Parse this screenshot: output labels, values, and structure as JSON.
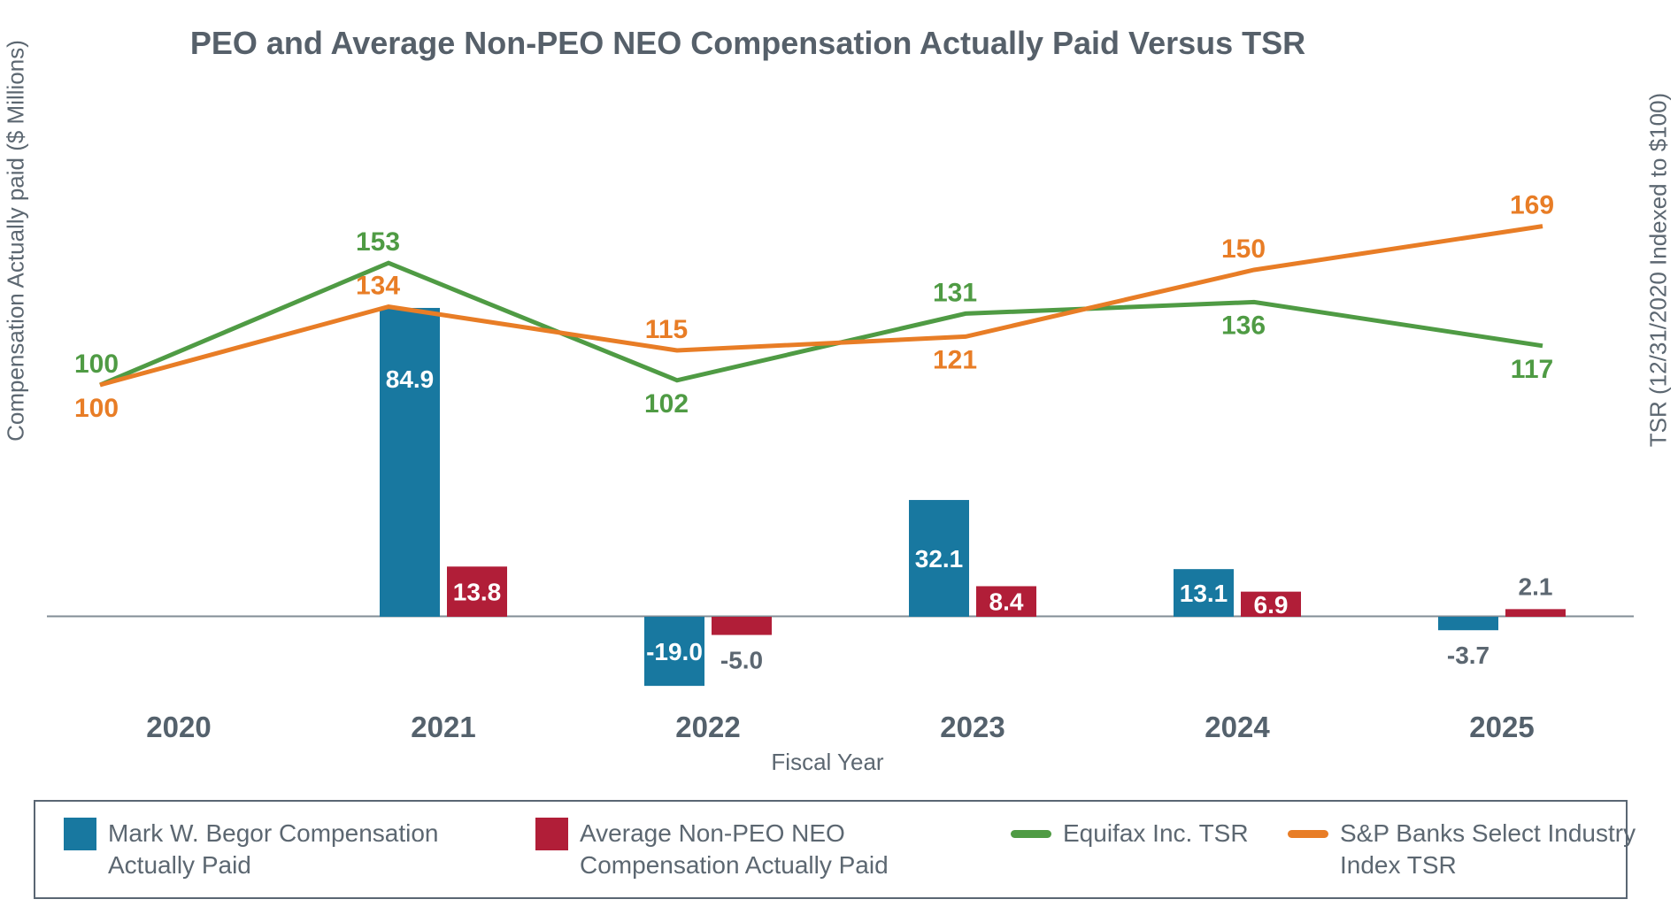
{
  "chart_data": {
    "type": "combo-bar-line",
    "title": "PEO and Average Non-PEO NEO Compensation Actually Paid Versus TSR",
    "categories": [
      "2020",
      "2021",
      "2022",
      "2023",
      "2024",
      "2025"
    ],
    "bar_series": [
      {
        "name": "Mark W. Begor Compensation Actually Paid",
        "color": "#1878A0",
        "values": [
          null,
          84.9,
          -19.0,
          32.1,
          13.1,
          -3.7
        ]
      },
      {
        "name": "Average Non-PEO NEO Compensation Actually Paid",
        "color": "#B11E38",
        "values": [
          null,
          13.8,
          -5.0,
          8.4,
          6.9,
          2.1
        ]
      }
    ],
    "line_series": [
      {
        "name": "Equifax Inc. TSR",
        "color": "#4F9B44",
        "values": [
          100,
          153,
          102,
          131,
          136,
          117
        ],
        "label_side": [
          "above",
          "above",
          "below",
          "above",
          "below",
          "below"
        ]
      },
      {
        "name": "S&P Banks Select Industry Index TSR",
        "color": "#E87D26",
        "values": [
          100,
          134,
          115,
          121,
          150,
          169
        ],
        "label_side": [
          "below",
          "above",
          "above",
          "below",
          "above",
          "above"
        ]
      }
    ],
    "left_axis": {
      "title": "Compensation Actually paid ($ Millions)"
    },
    "right_axis": {
      "title": "TSR (12/31/2020 Indexed to $100)"
    },
    "x_axis": {
      "title": "Fiscal Year"
    },
    "grid": false,
    "legend_position": "bottom"
  },
  "legend": {
    "items": [
      {
        "swatch": "square",
        "color": "#1878A0",
        "label_lines": [
          "Mark W. Begor Compensation",
          "Actually Paid"
        ]
      },
      {
        "swatch": "square",
        "color": "#B11E38",
        "label_lines": [
          "Average Non-PEO NEO",
          "Compensation Actually Paid"
        ]
      },
      {
        "swatch": "line",
        "color": "#4F9B44",
        "label_lines": [
          "Equifax Inc. TSR"
        ]
      },
      {
        "swatch": "line",
        "color": "#E87D26",
        "label_lines": [
          "S&P Banks Select Industry",
          "Index TSR"
        ]
      }
    ]
  },
  "colors": {
    "peo_bar": "#1878A0",
    "neo_bar": "#B11E38",
    "equifax_line": "#4F9B44",
    "sp_line": "#E87D26",
    "text": "#5C6771",
    "title": "#56606A",
    "year_label": "#54616C",
    "axis_line": "#828D96",
    "bar_label_inside": "#FFFFFF"
  }
}
